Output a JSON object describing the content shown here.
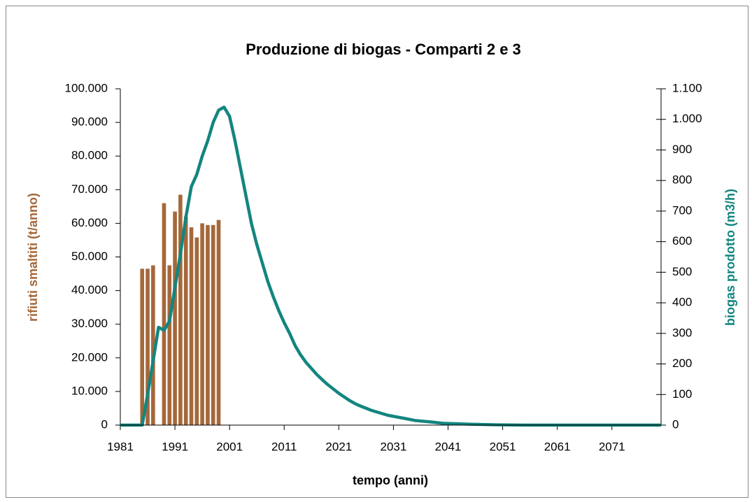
{
  "chart_data": {
    "type": "bar+line",
    "title": "Produzione di biogas - Comparti 2 e 3",
    "xlabel": "tempo (anni)",
    "ylabel": "rifiuti smaltiti (t/anno)",
    "y2label": "biogas prodotto (m3/h)",
    "xlim": [
      1981,
      2080
    ],
    "xticks": [
      1981,
      1991,
      2001,
      2011,
      2021,
      2031,
      2041,
      2051,
      2061,
      2071
    ],
    "ylim": [
      0,
      100000
    ],
    "yticks": [
      0,
      {
        "value": 10000,
        "label": "10.000"
      },
      {
        "value": 20000,
        "label": "20.000"
      },
      {
        "value": 30000,
        "label": "30.000"
      },
      {
        "value": 40000,
        "label": "40.000"
      },
      {
        "value": 50000,
        "label": "50.000"
      },
      {
        "value": 60000,
        "label": "60.000"
      },
      {
        "value": 70000,
        "label": "70.000"
      },
      {
        "value": 80000,
        "label": "80.000"
      },
      {
        "value": 90000,
        "label": "90.000"
      },
      {
        "value": 100000,
        "label": "100.000"
      }
    ],
    "y2lim": [
      0,
      1100
    ],
    "y2ticks": [
      0,
      100,
      200,
      300,
      400,
      500,
      600,
      700,
      800,
      900,
      {
        "value": 1000,
        "label": "1.000"
      },
      {
        "value": 1100,
        "label": "1.100"
      }
    ],
    "series": [
      {
        "type": "bar",
        "color": "#a5683a",
        "axis": "y",
        "x": [
          1985,
          1986,
          1987,
          1989,
          1990,
          1991,
          1992,
          1993,
          1994,
          1995,
          1996,
          1997,
          1998,
          1999
        ],
        "values": [
          46500,
          46500,
          47500,
          66000,
          47500,
          63500,
          68500,
          62000,
          58800,
          55800,
          60000,
          59500,
          59500,
          61000
        ]
      },
      {
        "type": "line",
        "color": "#13857f",
        "axis": "y2",
        "x": [
          1981,
          1985,
          1986,
          1987,
          1988,
          1989,
          1990,
          1991,
          1992,
          1993,
          1994,
          1995,
          1996,
          1997,
          1998,
          1999,
          2000,
          2001,
          2002,
          2003,
          2004,
          2005,
          2006,
          2007,
          2008,
          2009,
          2010,
          2011,
          2012,
          2013,
          2014,
          2015,
          2016,
          2017,
          2018,
          2019,
          2020,
          2021,
          2022,
          2023,
          2024,
          2025,
          2027,
          2030,
          2033,
          2035,
          2038,
          2040,
          2045,
          2050,
          2055,
          2080
        ],
        "values": [
          0,
          0,
          100,
          210,
          320,
          310,
          340,
          450,
          560,
          680,
          780,
          820,
          880,
          930,
          990,
          1030,
          1040,
          1010,
          930,
          840,
          750,
          660,
          590,
          530,
          470,
          420,
          375,
          335,
          300,
          260,
          230,
          205,
          185,
          165,
          148,
          132,
          118,
          104,
          92,
          80,
          70,
          62,
          48,
          32,
          22,
          15,
          10,
          6,
          3,
          1,
          0,
          0
        ]
      }
    ]
  }
}
